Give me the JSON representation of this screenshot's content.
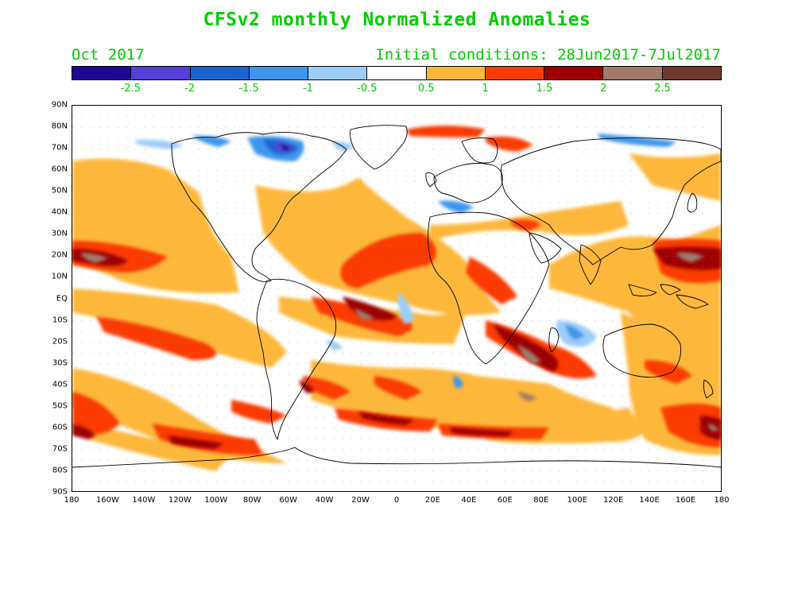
{
  "title": "CFSv2 monthly Normalized Anomalies",
  "month": "Oct 2017",
  "initial_conditions": "Initial conditions: 28Jun2017-7Jul2017",
  "colorbar": {
    "colors": [
      "#1e0896",
      "#5440d6",
      "#1c63d2",
      "#3c96ee",
      "#9ccdf8",
      "#ffffff",
      "#fdb83a",
      "#fb3b00",
      "#9c0000",
      "#a07b6c",
      "#6f3a2d"
    ],
    "labels": [
      "-2.5",
      "-2",
      "-1.5",
      "-1",
      "-0.5",
      "0.5",
      "1",
      "1.5",
      "2",
      "2.5"
    ]
  },
  "y_axis_labels": [
    "90N",
    "80N",
    "70N",
    "60N",
    "50N",
    "40N",
    "30N",
    "20N",
    "10N",
    "EQ",
    "10S",
    "20S",
    "30S",
    "40S",
    "50S",
    "60S",
    "70S",
    "80S",
    "90S"
  ],
  "x_axis_labels": [
    "180",
    "160W",
    "140W",
    "120W",
    "100W",
    "80W",
    "60W",
    "40W",
    "20W",
    "0",
    "20E",
    "40E",
    "60E",
    "80E",
    "100E",
    "120E",
    "140E",
    "160E",
    "180"
  ]
}
